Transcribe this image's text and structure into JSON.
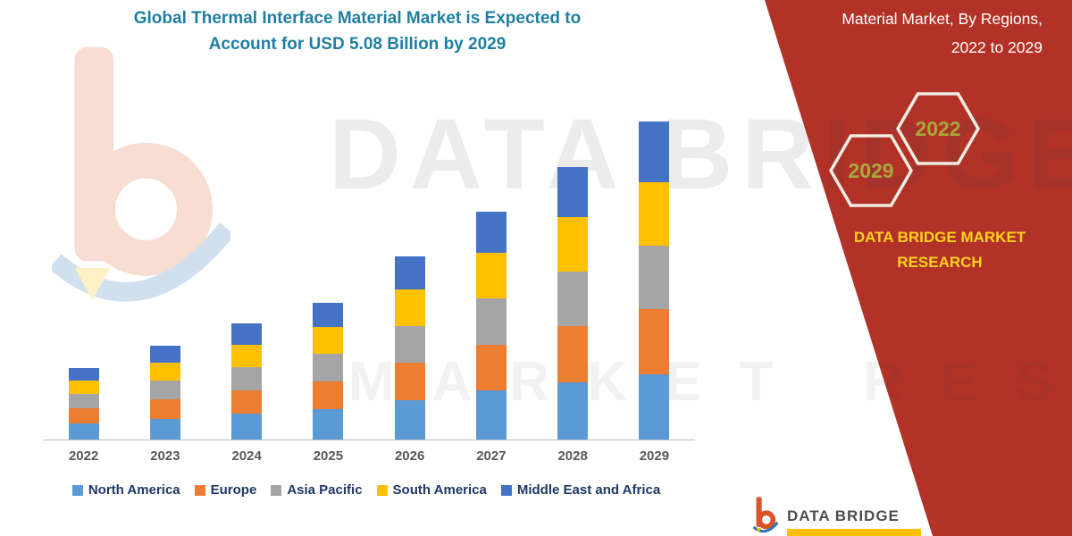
{
  "title": {
    "line1": "Global Thermal Interface Material Market is Expected to",
    "line2": "Account for USD 5.08 Billion by 2029"
  },
  "right_panel": {
    "heading_line1": "Material Market, By Regions,",
    "heading_line2": "2022 to 2029",
    "hexagons": [
      {
        "label": "2029"
      },
      {
        "label": "2022"
      }
    ],
    "brand_line1": "DATA BRIDGE MARKET",
    "brand_line2": "RESEARCH",
    "bg_color": "#B23227",
    "brand_color": "#FFD21C",
    "hex_label_color": "#A8A93C"
  },
  "watermark": {
    "line1": "DATA BRIDGE",
    "line2": "MARKET RESEARCH"
  },
  "footer_logo": {
    "brand": "DATA BRIDGE"
  },
  "chart_data": {
    "type": "bar",
    "stacked": true,
    "title": "Global Thermal Interface Material Market is Expected to Account for USD 5.08 Billion by 2029",
    "xlabel": "",
    "ylabel": "",
    "ylim": [
      0,
      5.5
    ],
    "grid": false,
    "legend_position": "bottom",
    "categories": [
      "2022",
      "2023",
      "2024",
      "2025",
      "2026",
      "2027",
      "2028",
      "2029"
    ],
    "series": [
      {
        "name": "North America",
        "color": "#5B9BD5",
        "values": [
          0.26,
          0.33,
          0.41,
          0.48,
          0.63,
          0.78,
          0.92,
          1.05
        ]
      },
      {
        "name": "Europe",
        "color": "#ED7D31",
        "values": [
          0.24,
          0.31,
          0.38,
          0.45,
          0.6,
          0.74,
          0.89,
          1.03
        ]
      },
      {
        "name": "Asia Pacific",
        "color": "#A5A5A5",
        "values": [
          0.23,
          0.3,
          0.37,
          0.44,
          0.59,
          0.74,
          0.88,
          1.02
        ]
      },
      {
        "name": "South America",
        "color": "#FFC000",
        "values": [
          0.22,
          0.29,
          0.36,
          0.43,
          0.58,
          0.72,
          0.87,
          1.01
        ]
      },
      {
        "name": "Middle East and Africa",
        "color": "#4472C4",
        "values": [
          0.2,
          0.27,
          0.34,
          0.39,
          0.53,
          0.67,
          0.8,
          0.97
        ]
      }
    ],
    "totals": [
      1.15,
      1.5,
      1.86,
      2.19,
      2.93,
      3.65,
      4.36,
      5.08
    ]
  }
}
